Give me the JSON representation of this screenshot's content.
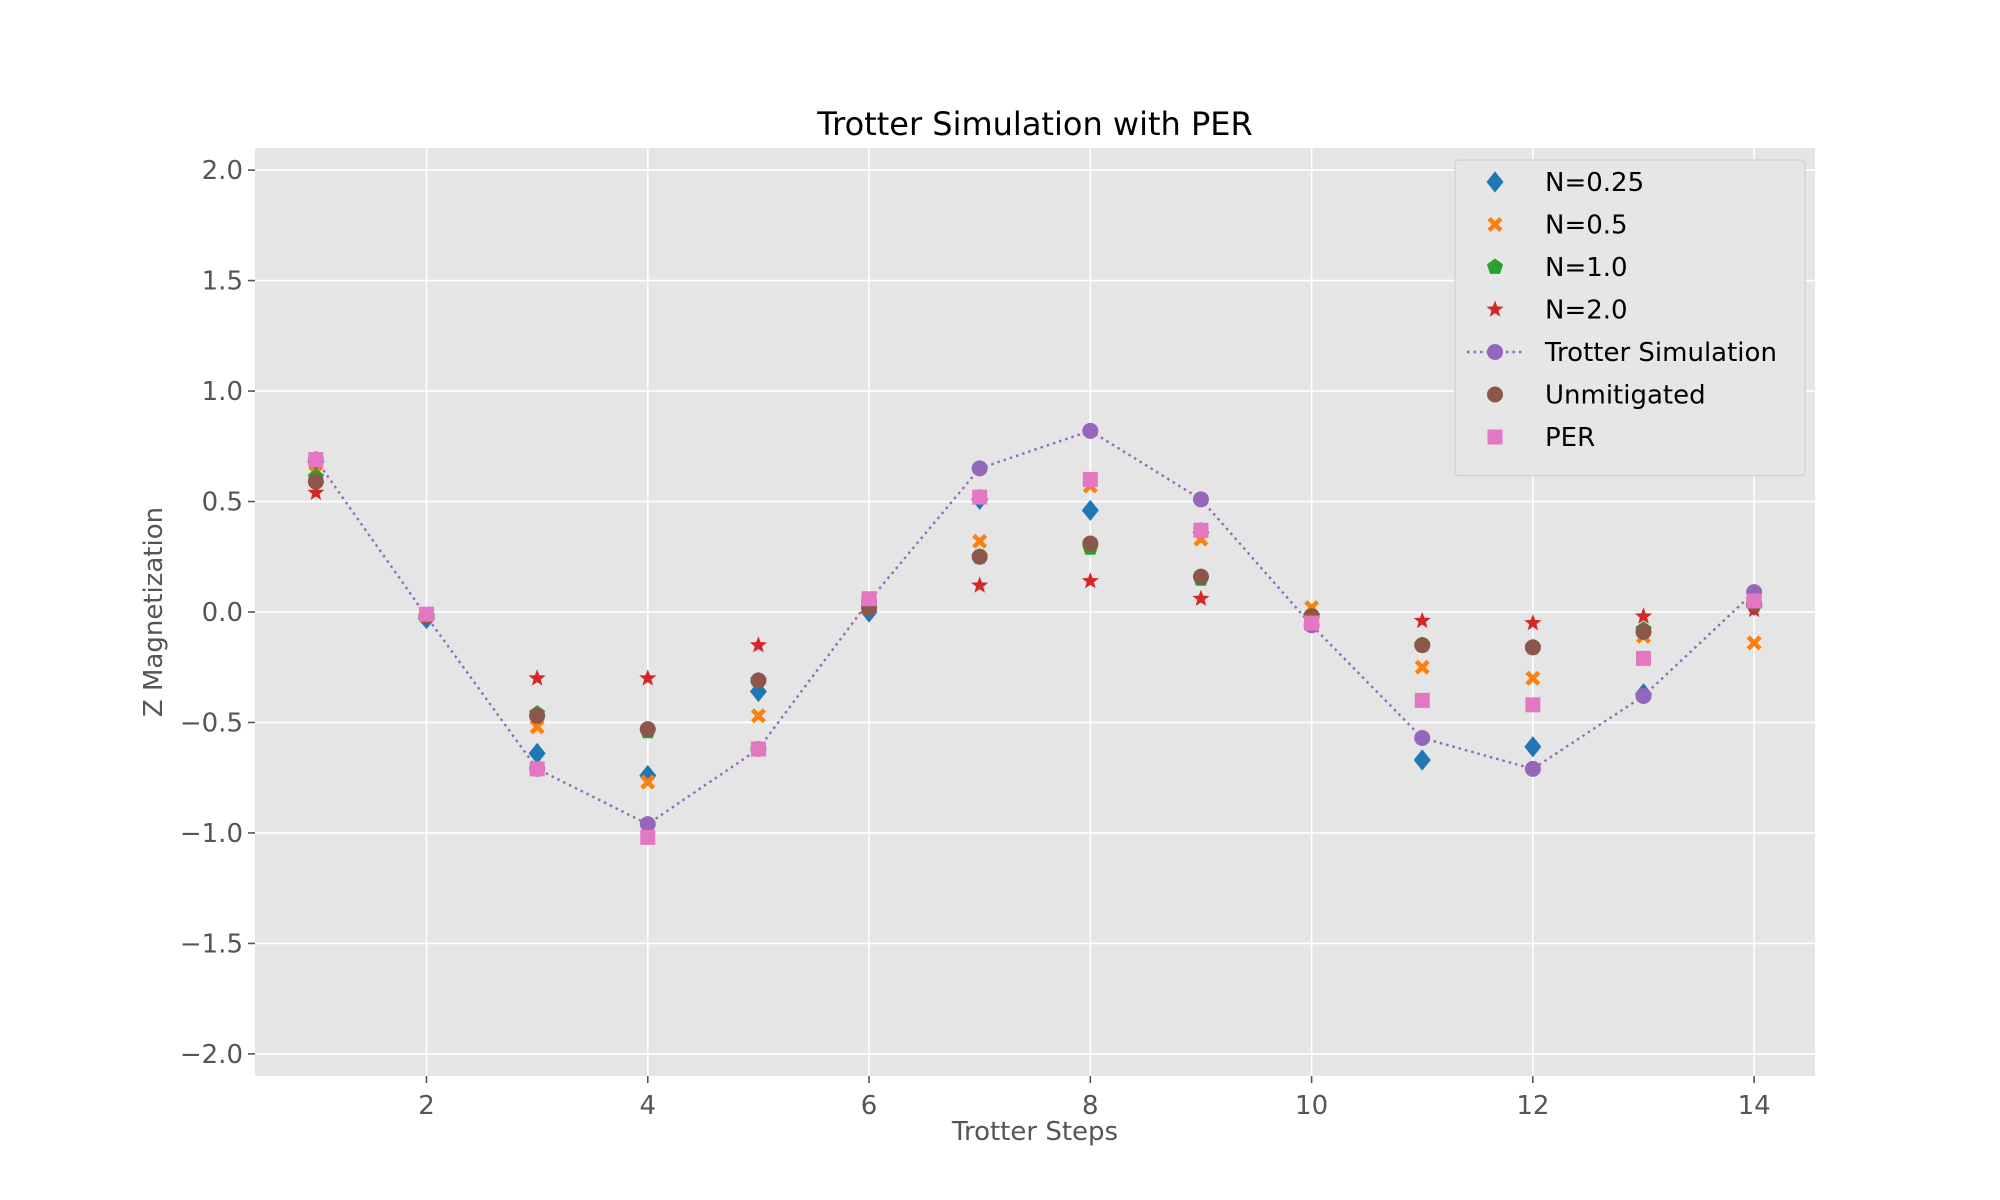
{
  "chart_data": {
    "type": "scatter",
    "title": "Trotter Simulation with PER",
    "xlabel": "Trotter Steps",
    "ylabel": "Z Magnetization",
    "xlim": [
      0.45,
      14.55
    ],
    "ylim": [
      -2.1,
      2.1
    ],
    "xticks": [
      2,
      4,
      6,
      8,
      10,
      12,
      14
    ],
    "xtick_labels": [
      "2",
      "4",
      "6",
      "8",
      "10",
      "12",
      "14"
    ],
    "yticks": [
      -2.0,
      -1.5,
      -1.0,
      -0.5,
      0.0,
      0.5,
      1.0,
      1.5,
      2.0
    ],
    "ytick_labels": [
      "−2.0",
      "−1.5",
      "−1.0",
      "−0.5",
      "0.0",
      "0.5",
      "1.0",
      "1.5",
      "2.0"
    ],
    "grid": true,
    "background": "#e5e5e5",
    "legend_position": "top-right",
    "x": [
      1,
      2,
      3,
      4,
      5,
      6,
      7,
      8,
      9,
      10,
      11,
      12,
      13,
      14
    ],
    "series": [
      {
        "name": "N=0.25",
        "marker": "diamond",
        "color": "#1f77b4",
        "line": false,
        "values": [
          0.68,
          -0.03,
          -0.64,
          -0.74,
          -0.36,
          0.0,
          0.51,
          0.46,
          0.36,
          -0.01,
          -0.67,
          -0.61,
          -0.37,
          0.03
        ]
      },
      {
        "name": "N=0.5",
        "marker": "x",
        "color": "#ff7f0e",
        "line": false,
        "values": [
          0.63,
          -0.02,
          -0.52,
          -0.77,
          -0.47,
          0.02,
          0.32,
          0.57,
          0.33,
          0.02,
          -0.25,
          -0.3,
          -0.11,
          -0.14
        ]
      },
      {
        "name": "N=1.0",
        "marker": "pentagon",
        "color": "#2ca02c",
        "line": false,
        "values": [
          0.61,
          -0.02,
          -0.46,
          -0.54,
          -0.31,
          0.02,
          0.25,
          0.29,
          0.15,
          -0.02,
          -0.15,
          -0.16,
          -0.08,
          0.03
        ]
      },
      {
        "name": "N=2.0",
        "marker": "star",
        "color": "#d62728",
        "line": false,
        "values": [
          0.54,
          -0.02,
          -0.3,
          -0.3,
          -0.15,
          0.02,
          0.12,
          0.14,
          0.06,
          -0.02,
          -0.04,
          -0.05,
          -0.02,
          0.01
        ]
      },
      {
        "name": "Trotter Simulation",
        "marker": "circle",
        "color": "#9467bd",
        "line": true,
        "values": [
          0.69,
          -0.02,
          -0.71,
          -0.96,
          -0.62,
          0.05,
          0.65,
          0.82,
          0.51,
          -0.06,
          -0.57,
          -0.71,
          -0.38,
          0.09
        ]
      },
      {
        "name": "Unmitigated",
        "marker": "circle",
        "color": "#8c564b",
        "line": false,
        "values": [
          0.59,
          -0.02,
          -0.47,
          -0.53,
          -0.31,
          0.02,
          0.25,
          0.31,
          0.16,
          -0.02,
          -0.15,
          -0.16,
          -0.09,
          0.04
        ]
      },
      {
        "name": "PER",
        "marker": "square",
        "color": "#e377c2",
        "line": false,
        "values": [
          0.69,
          -0.01,
          -0.71,
          -1.02,
          -0.62,
          0.06,
          0.52,
          0.6,
          0.37,
          -0.05,
          -0.4,
          -0.42,
          -0.21,
          0.05
        ]
      }
    ]
  }
}
